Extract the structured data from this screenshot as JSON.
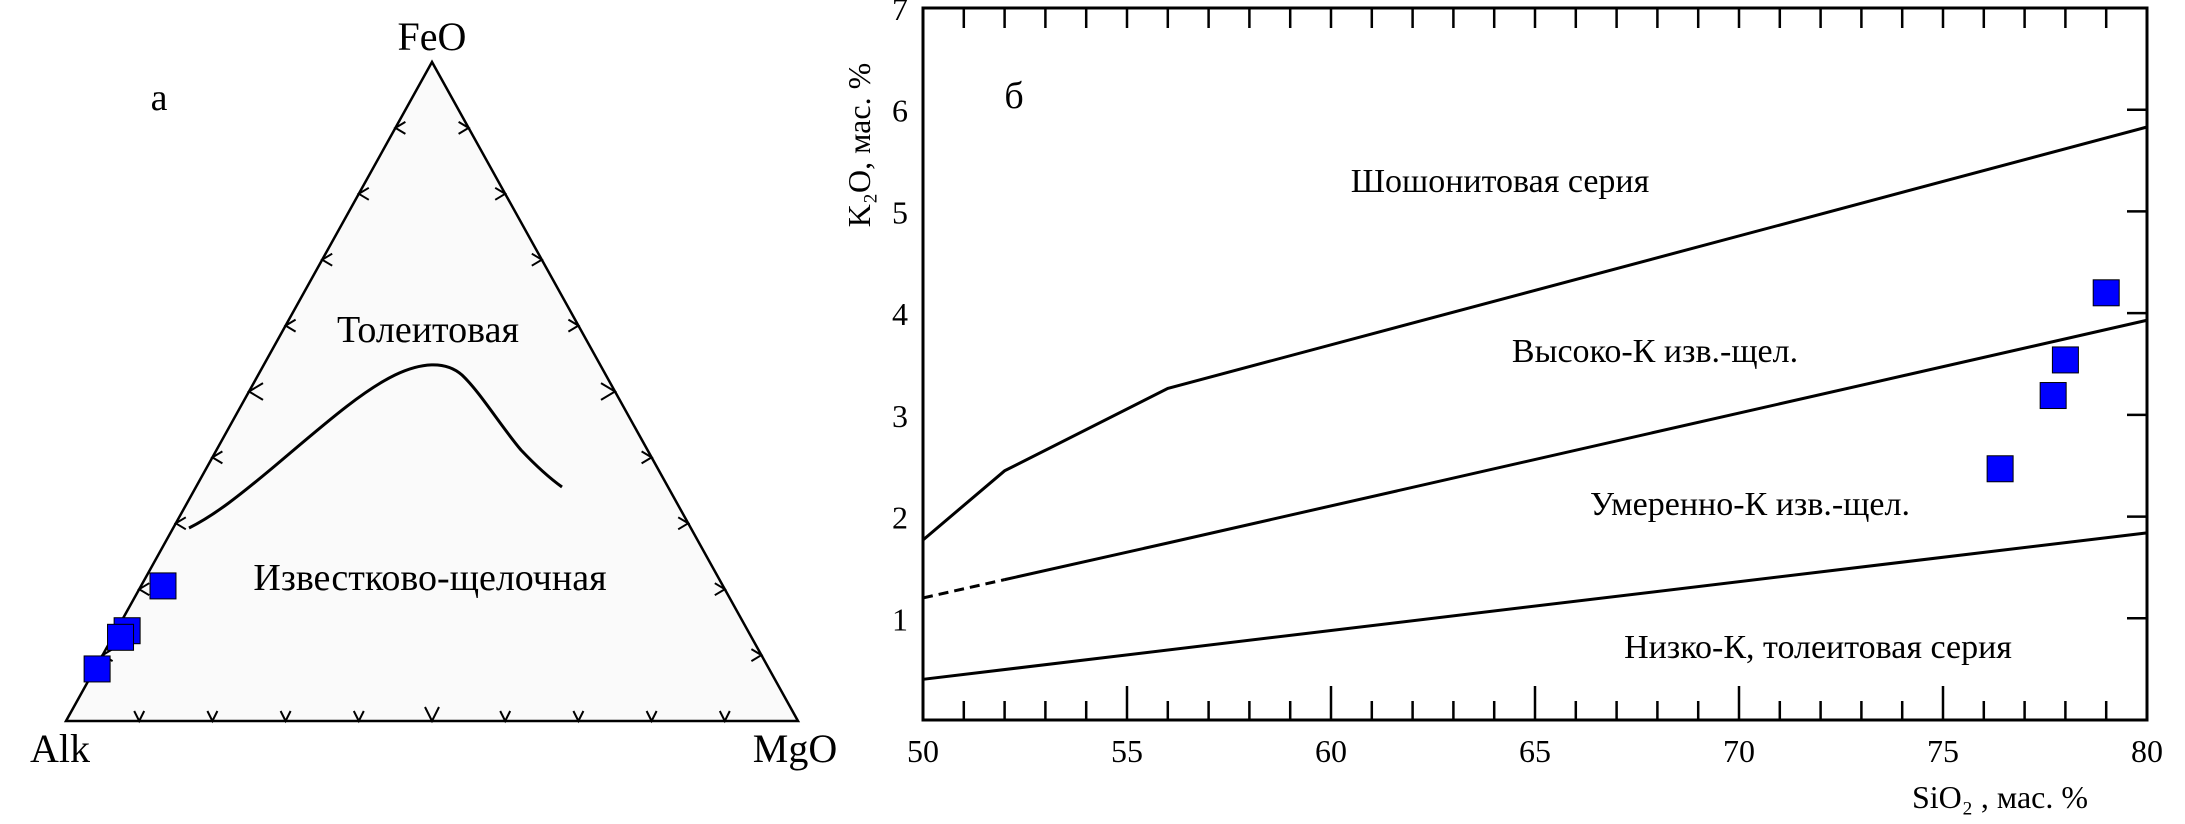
{
  "chart_data": [
    {
      "type": "ternary",
      "panel_label": "а",
      "vertices": {
        "top": "FeO",
        "left": "Alk",
        "right": "MgO"
      },
      "regions": [
        "Толеитовая",
        "Известково-щелочная"
      ],
      "points": [
        {
          "FeO": 0.205,
          "MgO": 0.03,
          "Alk": 0.765
        },
        {
          "FeO": 0.137,
          "MgO": 0.015,
          "Alk": 0.848
        },
        {
          "FeO": 0.127,
          "MgO": 0.011,
          "Alk": 0.862
        },
        {
          "FeO": 0.079,
          "MgO": 0.003,
          "Alk": 0.918
        }
      ],
      "tick_step": 0.1,
      "marker_color": "#0000ff"
    },
    {
      "type": "scatter",
      "panel_label": "б",
      "xlabel": "SiO₂ , мас. %",
      "ylabel": "K₂O, мас. %",
      "xlim": [
        50,
        80
      ],
      "ylim": [
        0,
        7
      ],
      "xticks": [
        50,
        55,
        60,
        65,
        70,
        75,
        80
      ],
      "yticks": [
        1,
        2,
        3,
        4,
        5,
        6,
        7
      ],
      "boundaries": [
        {
          "name": "shoshonite-boundary",
          "points": [
            [
              50,
              1.77
            ],
            [
              52,
              2.45
            ],
            [
              56,
              3.26
            ],
            [
              80,
              5.83
            ]
          ]
        },
        {
          "name": "high-k-boundary-dashed",
          "dashed": true,
          "points": [
            [
              50,
              1.2
            ],
            [
              52,
              1.38
            ]
          ]
        },
        {
          "name": "high-k-boundary",
          "points": [
            [
              52,
              1.38
            ],
            [
              56,
              1.74
            ],
            [
              80,
              3.93
            ]
          ]
        },
        {
          "name": "low-k-boundary",
          "points": [
            [
              50,
              0.4
            ],
            [
              80,
              1.84
            ]
          ]
        }
      ],
      "regions": [
        "Шошонитовая серия",
        "Высоко-К изв.-щел.",
        "Умеренно-К изв.-щел.",
        "Низко-К, толеитовая серия"
      ],
      "points": [
        [
          76.4,
          2.47
        ],
        [
          77.7,
          3.19
        ],
        [
          78.0,
          3.54
        ],
        [
          79.0,
          4.2
        ]
      ],
      "marker_color": "#0000ff"
    }
  ]
}
